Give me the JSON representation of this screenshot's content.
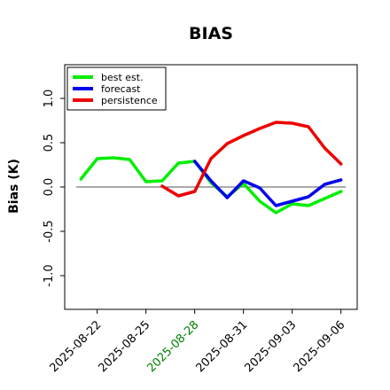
{
  "chart_data": {
    "type": "line",
    "title": "BIAS",
    "xlabel": "",
    "ylabel": "Bias (K)",
    "x_ticks": [
      "2025-08-22",
      "2025-08-25",
      "2025-08-28",
      "2025-08-31",
      "2025-09-03",
      "2025-09-06"
    ],
    "highlight_tick": "2025-08-28",
    "highlight_color": "#008000",
    "y_ticks": [
      "-1.0",
      "-0.5",
      "0.0",
      "0.5",
      "1.0"
    ],
    "ylim": [
      -1.38,
      1.38
    ],
    "xlim": [
      "2025-08-20",
      "2025-09-07"
    ],
    "zero_line": true,
    "legend_position": "top-left",
    "series": [
      {
        "name": "best est.",
        "color": "#00ee00",
        "x": [
          "2025-08-21",
          "2025-08-22",
          "2025-08-23",
          "2025-08-24",
          "2025-08-25",
          "2025-08-26",
          "2025-08-27",
          "2025-08-28",
          "2025-08-29",
          "2025-08-30",
          "2025-08-31",
          "2025-09-01",
          "2025-09-02",
          "2025-09-03",
          "2025-09-04",
          "2025-09-05",
          "2025-09-06"
        ],
        "values": [
          0.09,
          0.32,
          0.33,
          0.31,
          0.06,
          0.07,
          0.27,
          0.29,
          0.05,
          -0.11,
          0.04,
          -0.16,
          -0.29,
          -0.19,
          -0.21,
          -0.13,
          -0.05
        ]
      },
      {
        "name": "forecast",
        "color": "#0000ee",
        "x": [
          "2025-08-28",
          "2025-08-29",
          "2025-08-30",
          "2025-08-31",
          "2025-09-01",
          "2025-09-02",
          "2025-09-03",
          "2025-09-04",
          "2025-09-05",
          "2025-09-06"
        ],
        "values": [
          0.29,
          0.07,
          -0.12,
          0.07,
          -0.01,
          -0.21,
          -0.16,
          -0.11,
          0.03,
          0.08
        ]
      },
      {
        "name": "persistence",
        "color": "#ee0000",
        "x": [
          "2025-08-26",
          "2025-08-27",
          "2025-08-28",
          "2025-08-29",
          "2025-08-30",
          "2025-08-31",
          "2025-09-01",
          "2025-09-02",
          "2025-09-03",
          "2025-09-04",
          "2025-09-05",
          "2025-09-06"
        ],
        "values": [
          0.01,
          -0.1,
          -0.05,
          0.32,
          0.49,
          0.58,
          0.66,
          0.73,
          0.72,
          0.68,
          0.44,
          0.26
        ]
      }
    ]
  }
}
